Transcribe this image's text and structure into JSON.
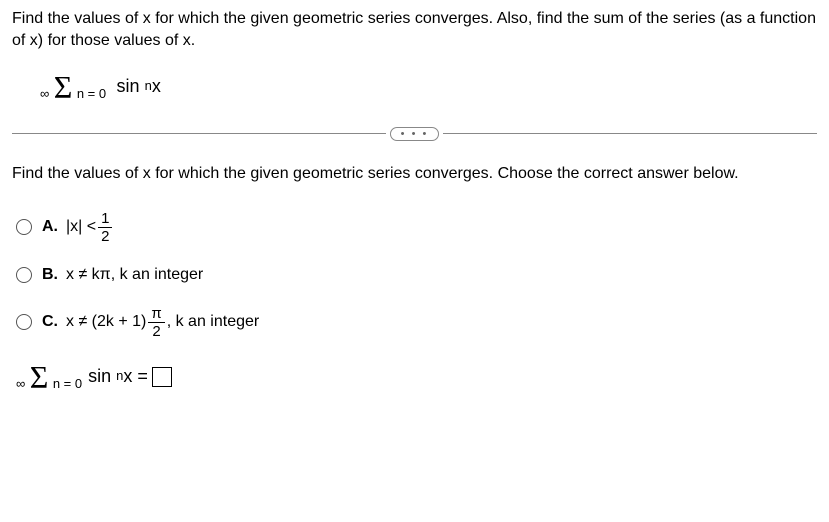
{
  "question": {
    "intro": "Find the values of x for which the given geometric series converges. Also, find the sum of the series (as a function of x) for those values of x.",
    "sigma_top": "∞",
    "sigma_bottom": "n = 0",
    "sigma_term_base": "sin",
    "sigma_term_exp": "n",
    "sigma_term_var": "x"
  },
  "divider": {
    "dots": "• • •"
  },
  "subquestion": "Find the values of x for which the given geometric series converges. Choose the correct answer below.",
  "options": {
    "a": {
      "label": "A.",
      "lhs": "|x| <",
      "frac_num": "1",
      "frac_den": "2"
    },
    "b": {
      "label": "B.",
      "text": "x ≠ kπ, k an integer"
    },
    "c": {
      "label": "C.",
      "lhs": "x ≠ (2k + 1)",
      "frac_num": "π",
      "frac_den": "2",
      "rhs": ", k an integer"
    }
  },
  "answer": {
    "sigma_top": "∞",
    "sigma_bottom": "n = 0",
    "sigma_term_base": "sin",
    "sigma_term_exp": "n",
    "sigma_term_var": "x =",
    "box_value": ""
  }
}
